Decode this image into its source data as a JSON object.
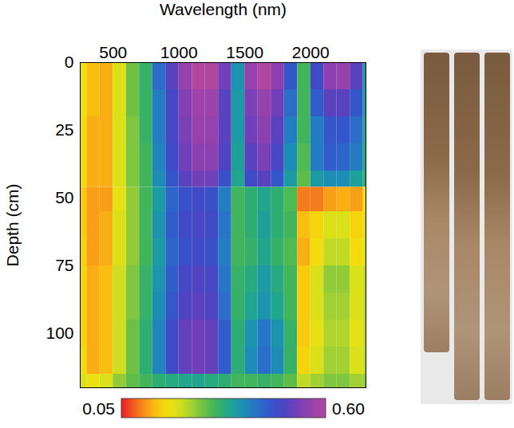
{
  "chart_data": {
    "type": "heatmap",
    "xlabel": "Wavelength (nm)",
    "ylabel": "Depth (cm)",
    "xlim": [
      250,
      2420
    ],
    "xticks": [
      500,
      1000,
      1500,
      2000
    ],
    "ylim": [
      0,
      120
    ],
    "yticks": [
      0,
      25,
      50,
      75,
      100
    ],
    "x_bins": [
      250,
      300,
      400,
      500,
      600,
      700,
      800,
      900,
      1000,
      1100,
      1200,
      1300,
      1400,
      1500,
      1600,
      1700,
      1800,
      1900,
      2000,
      2100,
      2200,
      2300,
      2400,
      2420
    ],
    "y_bins": [
      0,
      10,
      20,
      30,
      40,
      46,
      55,
      65,
      75,
      85,
      95,
      105,
      115,
      120
    ],
    "cells": [
      [
        0.18,
        0.14,
        0.13,
        0.2,
        0.27,
        0.31,
        0.42,
        0.5,
        0.56,
        0.6,
        0.6,
        0.52,
        0.37,
        0.56,
        0.6,
        0.55,
        0.45,
        0.3,
        0.47,
        0.55,
        0.56,
        0.5,
        0.36
      ],
      [
        0.18,
        0.14,
        0.13,
        0.2,
        0.27,
        0.31,
        0.4,
        0.48,
        0.54,
        0.57,
        0.57,
        0.5,
        0.36,
        0.53,
        0.56,
        0.52,
        0.42,
        0.3,
        0.44,
        0.5,
        0.5,
        0.45,
        0.35
      ],
      [
        0.17,
        0.13,
        0.13,
        0.2,
        0.26,
        0.31,
        0.4,
        0.48,
        0.53,
        0.56,
        0.56,
        0.5,
        0.36,
        0.52,
        0.55,
        0.5,
        0.4,
        0.3,
        0.4,
        0.45,
        0.45,
        0.42,
        0.34
      ],
      [
        0.17,
        0.13,
        0.13,
        0.2,
        0.26,
        0.3,
        0.39,
        0.47,
        0.52,
        0.55,
        0.55,
        0.49,
        0.35,
        0.5,
        0.53,
        0.48,
        0.38,
        0.29,
        0.4,
        0.44,
        0.43,
        0.4,
        0.33
      ],
      [
        0.17,
        0.13,
        0.13,
        0.2,
        0.26,
        0.3,
        0.38,
        0.45,
        0.5,
        0.52,
        0.52,
        0.46,
        0.34,
        0.47,
        0.5,
        0.45,
        0.36,
        0.28,
        0.36,
        0.38,
        0.38,
        0.35,
        0.32
      ],
      [
        0.15,
        0.12,
        0.12,
        0.19,
        0.25,
        0.3,
        0.36,
        0.43,
        0.46,
        0.47,
        0.46,
        0.4,
        0.3,
        0.32,
        0.34,
        0.32,
        0.29,
        0.1,
        0.1,
        0.12,
        0.13,
        0.12,
        0.18
      ],
      [
        0.15,
        0.12,
        0.13,
        0.2,
        0.25,
        0.3,
        0.37,
        0.44,
        0.47,
        0.48,
        0.47,
        0.41,
        0.3,
        0.32,
        0.35,
        0.32,
        0.3,
        0.14,
        0.16,
        0.2,
        0.2,
        0.16,
        0.2
      ],
      [
        0.16,
        0.12,
        0.13,
        0.2,
        0.25,
        0.3,
        0.36,
        0.43,
        0.46,
        0.47,
        0.46,
        0.4,
        0.3,
        0.31,
        0.34,
        0.31,
        0.29,
        0.13,
        0.17,
        0.22,
        0.22,
        0.17,
        0.2
      ],
      [
        0.16,
        0.13,
        0.14,
        0.21,
        0.26,
        0.31,
        0.37,
        0.44,
        0.48,
        0.49,
        0.48,
        0.41,
        0.31,
        0.33,
        0.36,
        0.33,
        0.3,
        0.15,
        0.2,
        0.25,
        0.25,
        0.2,
        0.22
      ],
      [
        0.16,
        0.13,
        0.14,
        0.21,
        0.26,
        0.31,
        0.38,
        0.45,
        0.49,
        0.5,
        0.49,
        0.42,
        0.31,
        0.34,
        0.37,
        0.34,
        0.3,
        0.15,
        0.2,
        0.24,
        0.24,
        0.2,
        0.22
      ],
      [
        0.16,
        0.13,
        0.14,
        0.21,
        0.27,
        0.32,
        0.39,
        0.47,
        0.51,
        0.52,
        0.51,
        0.44,
        0.32,
        0.37,
        0.41,
        0.37,
        0.31,
        0.15,
        0.19,
        0.23,
        0.23,
        0.19,
        0.22
      ],
      [
        0.17,
        0.13,
        0.14,
        0.21,
        0.27,
        0.32,
        0.39,
        0.47,
        0.51,
        0.52,
        0.51,
        0.44,
        0.32,
        0.38,
        0.42,
        0.38,
        0.31,
        0.16,
        0.2,
        0.24,
        0.24,
        0.2,
        0.22
      ],
      [
        0.2,
        0.18,
        0.2,
        0.25,
        0.28,
        0.3,
        0.32,
        0.33,
        0.34,
        0.34,
        0.33,
        0.32,
        0.3,
        0.3,
        0.31,
        0.3,
        0.28,
        0.22,
        0.24,
        0.26,
        0.26,
        0.24,
        0.25
      ]
    ],
    "colorbar": {
      "lim": [
        0.05,
        0.6
      ],
      "ticks": [
        0.05,
        {
          "value": 0.6,
          "label": "0.60"
        }
      ]
    }
  }
}
